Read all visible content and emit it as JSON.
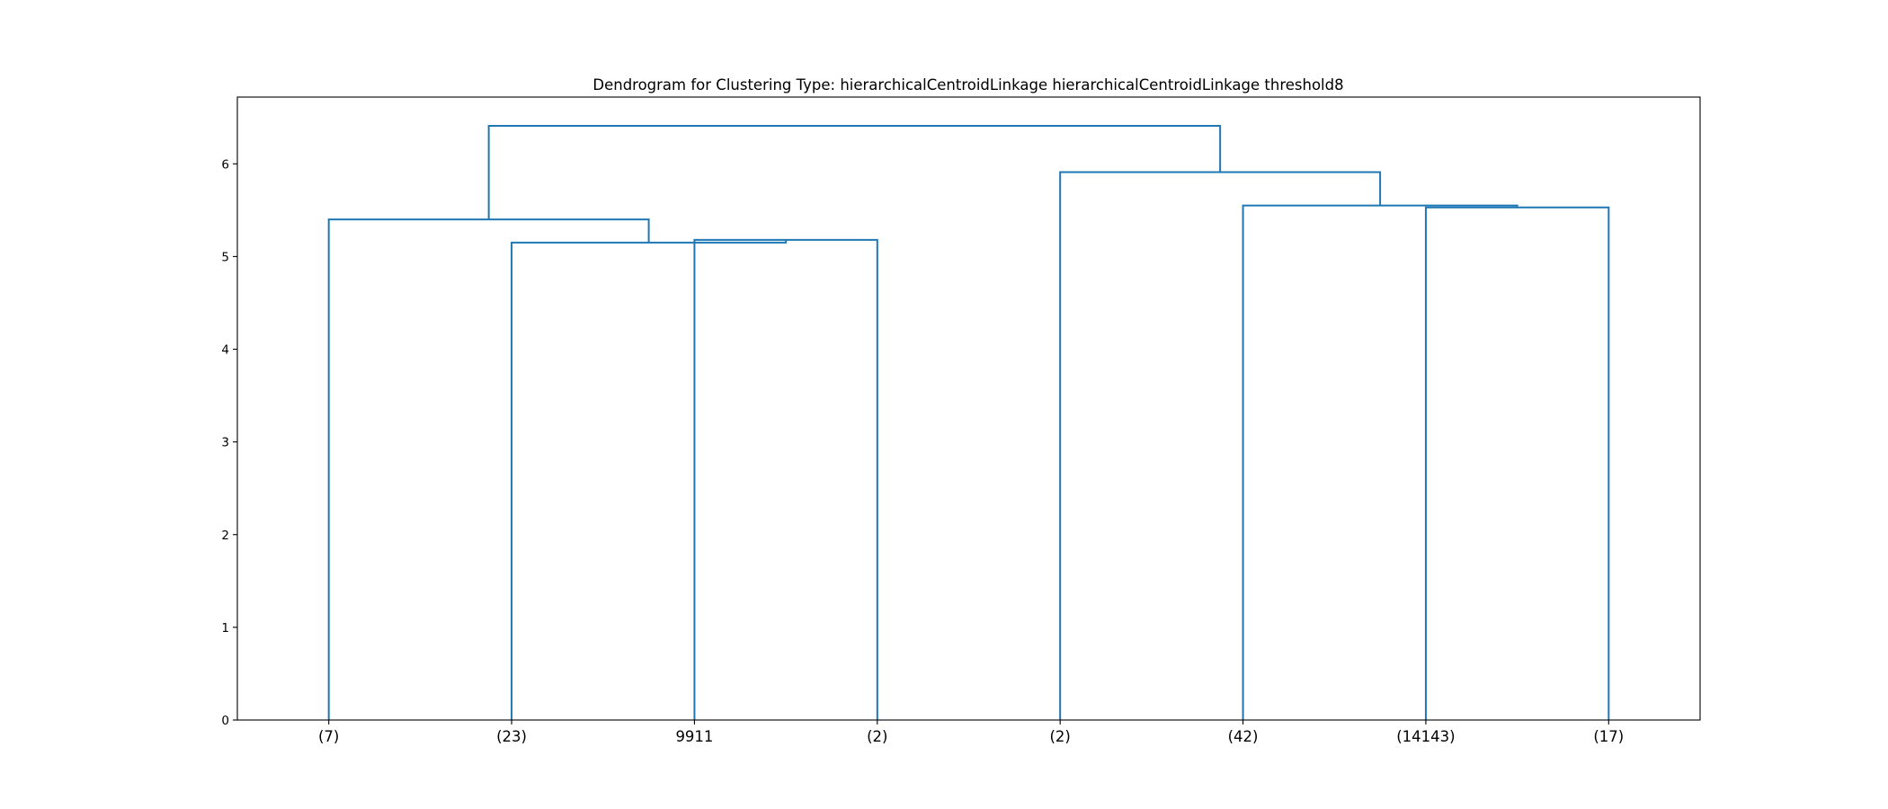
{
  "chart_data": {
    "type": "dendrogram",
    "title": "Dendrogram for Clustering Type: hierarchicalCentroidLinkage hierarchicalCentroidLinkage threshold8",
    "xlabel": "",
    "ylabel": "",
    "ylim": [
      0,
      6.72
    ],
    "yticks": [
      0,
      1,
      2,
      3,
      4,
      5,
      6
    ],
    "grid": false,
    "link_color": "#1f77b4",
    "leaves": [
      "(7)",
      "(23)",
      "9911",
      "(2)",
      "(2)",
      "(42)",
      "(14143)",
      "(17)"
    ],
    "merges": [
      {
        "left": "leaf:2",
        "right": "leaf:3",
        "height": 5.18
      },
      {
        "left": "leaf:1",
        "right": "merge:0",
        "height": 5.15
      },
      {
        "left": "leaf:0",
        "right": "merge:1",
        "height": 5.4
      },
      {
        "left": "leaf:6",
        "right": "leaf:7",
        "height": 5.53
      },
      {
        "left": "leaf:5",
        "right": "merge:3",
        "height": 5.55
      },
      {
        "left": "leaf:4",
        "right": "merge:4",
        "height": 5.91
      },
      {
        "left": "merge:2",
        "right": "merge:5",
        "height": 6.41
      }
    ]
  }
}
